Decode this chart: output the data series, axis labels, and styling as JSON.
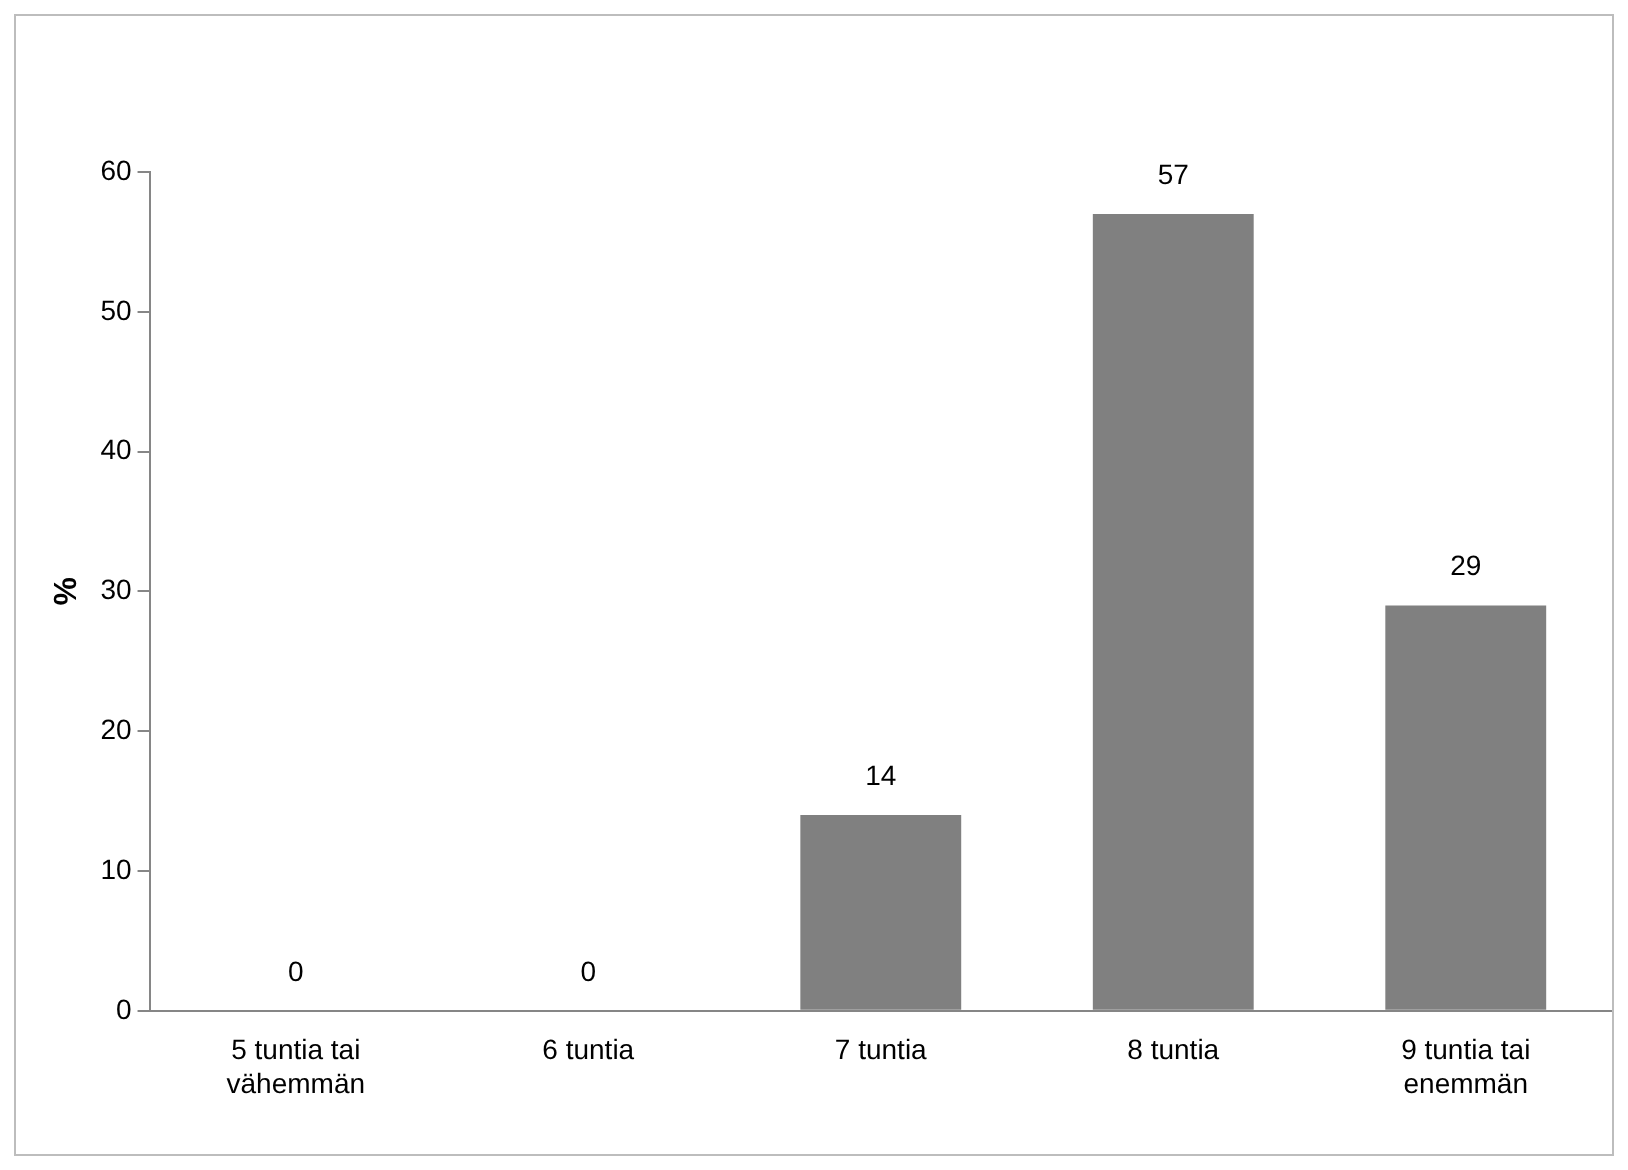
{
  "chart_data": {
    "type": "bar",
    "ylabel": "%",
    "categories": [
      "5 tuntia tai vähemmän",
      "6 tuntia",
      "7 tuntia",
      "8 tuntia",
      "9 tuntia tai enemmän"
    ],
    "values": [
      0,
      0,
      14,
      57,
      29
    ],
    "color": "#808080",
    "ylim": [
      0,
      60
    ],
    "yticks": [
      0,
      10,
      20,
      30,
      40,
      50,
      60
    ],
    "grid": false,
    "legend": false,
    "data_labels": true
  }
}
